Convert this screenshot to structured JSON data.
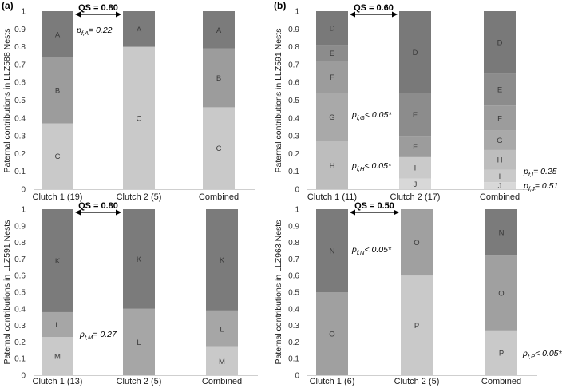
{
  "figure": {
    "panel_a_label": "(a)",
    "panel_b_label": "(b)"
  },
  "colors": {
    "D": "#797979",
    "E": "#8c8c8c",
    "F": "#9c9c9c",
    "G": "#a9a9a9",
    "H": "#bdbdbd",
    "I": "#cacaca",
    "J": "#d8d8d8",
    "A": "#7b7b7b",
    "B": "#9c9c9c",
    "C": "#c9c9c9",
    "K": "#7b7b7b",
    "L": "#a6a6a6",
    "M": "#c9c9c9",
    "N": "#7b7b7b",
    "O": "#a0a0a0",
    "P": "#c9c9c9"
  },
  "chart_data": [
    {
      "id": "a-top",
      "type": "bar",
      "stacked": true,
      "ylabel": "Paternal contributions in LLZ588 Nests",
      "ylim": [
        0,
        1
      ],
      "yticks": [
        "0",
        "0.1",
        "0.2",
        "0.3",
        "0.4",
        "0.5",
        "0.6",
        "0.7",
        "0.8",
        "0.9",
        "1"
      ],
      "categories": [
        "Clutch 1 (19)",
        "Clutch 2 (5)",
        "Combined"
      ],
      "series": [
        {
          "name": "C",
          "values": [
            0.37,
            0.8,
            0.46
          ]
        },
        {
          "name": "B",
          "values": [
            0.37,
            0.0,
            0.33
          ]
        },
        {
          "name": "A",
          "values": [
            0.26,
            0.2,
            0.21
          ]
        }
      ],
      "qs": "QS = 0.80",
      "annotations": [
        {
          "text": "= 0.22",
          "sub": "f,A",
          "anchor": "top-left"
        }
      ]
    },
    {
      "id": "b-top",
      "type": "bar",
      "stacked": true,
      "ylabel": "Paternal contributions in LLZ591 Nests",
      "ylim": [
        0,
        1
      ],
      "yticks": [
        "0",
        "0.1",
        "0.2",
        "0.3",
        "0.4",
        "0.5",
        "0.6",
        "0.7",
        "0.8",
        "0.9",
        "1"
      ],
      "categories": [
        "Clutch 1 (11)",
        "Clutch 2 (17)",
        "Combined"
      ],
      "series": [
        {
          "name": "J",
          "values": [
            0.0,
            0.06,
            0.04
          ]
        },
        {
          "name": "I",
          "values": [
            0.0,
            0.12,
            0.07
          ]
        },
        {
          "name": "H",
          "values": [
            0.27,
            0.0,
            0.11
          ]
        },
        {
          "name": "G",
          "values": [
            0.27,
            0.0,
            0.11
          ]
        },
        {
          "name": "F",
          "values": [
            0.18,
            0.12,
            0.14
          ]
        },
        {
          "name": "E",
          "values": [
            0.09,
            0.24,
            0.18
          ]
        },
        {
          "name": "D",
          "values": [
            0.19,
            0.46,
            0.35
          ]
        }
      ],
      "qs": "QS = 0.60",
      "annotations": [
        {
          "text": "< 0.05*",
          "sub": "f,G"
        },
        {
          "text": "< 0.05*",
          "sub": "f,H"
        },
        {
          "text": "= 0.25",
          "sub": "f,I"
        },
        {
          "text": "= 0.51",
          "sub": "f,J"
        }
      ]
    },
    {
      "id": "a-bottom",
      "type": "bar",
      "stacked": true,
      "ylabel": "Paternal contributions in LLZ591 Nests",
      "ylim": [
        0,
        1
      ],
      "yticks": [
        "0",
        "0.1",
        "0.2",
        "0.3",
        "0.4",
        "0.5",
        "0.6",
        "0.7",
        "0.8",
        "0.9",
        "1"
      ],
      "categories": [
        "Clutch 1 (13)",
        "Clutch 2 (5)",
        "Combined"
      ],
      "series": [
        {
          "name": "M",
          "values": [
            0.23,
            0.0,
            0.17
          ]
        },
        {
          "name": "L",
          "values": [
            0.15,
            0.4,
            0.22
          ]
        },
        {
          "name": "K",
          "values": [
            0.62,
            0.6,
            0.61
          ]
        }
      ],
      "qs": "QS = 0.80",
      "annotations": [
        {
          "text": "= 0.27",
          "sub": "f,M"
        }
      ]
    },
    {
      "id": "b-bottom",
      "type": "bar",
      "stacked": true,
      "ylabel": "Paternal contributions in LLZ963 Nests",
      "ylim": [
        0,
        1
      ],
      "yticks": [
        "0",
        "0.1",
        "0.2",
        "0.3",
        "0.4",
        "0.5",
        "0.6",
        "0.7",
        "0.8",
        "0.9",
        "1"
      ],
      "categories": [
        "Clutch 1 (6)",
        "Clutch 2 (5)",
        "Combined"
      ],
      "series": [
        {
          "name": "P",
          "values": [
            0.0,
            0.6,
            0.27
          ]
        },
        {
          "name": "O",
          "values": [
            0.5,
            0.4,
            0.45
          ]
        },
        {
          "name": "N",
          "values": [
            0.5,
            0.0,
            0.28
          ]
        }
      ],
      "qs": "QS = 0.50",
      "annotations": [
        {
          "text": "< 0.05*",
          "sub": "f,N"
        },
        {
          "text": "< 0.05*",
          "sub": "f,P"
        }
      ]
    }
  ]
}
